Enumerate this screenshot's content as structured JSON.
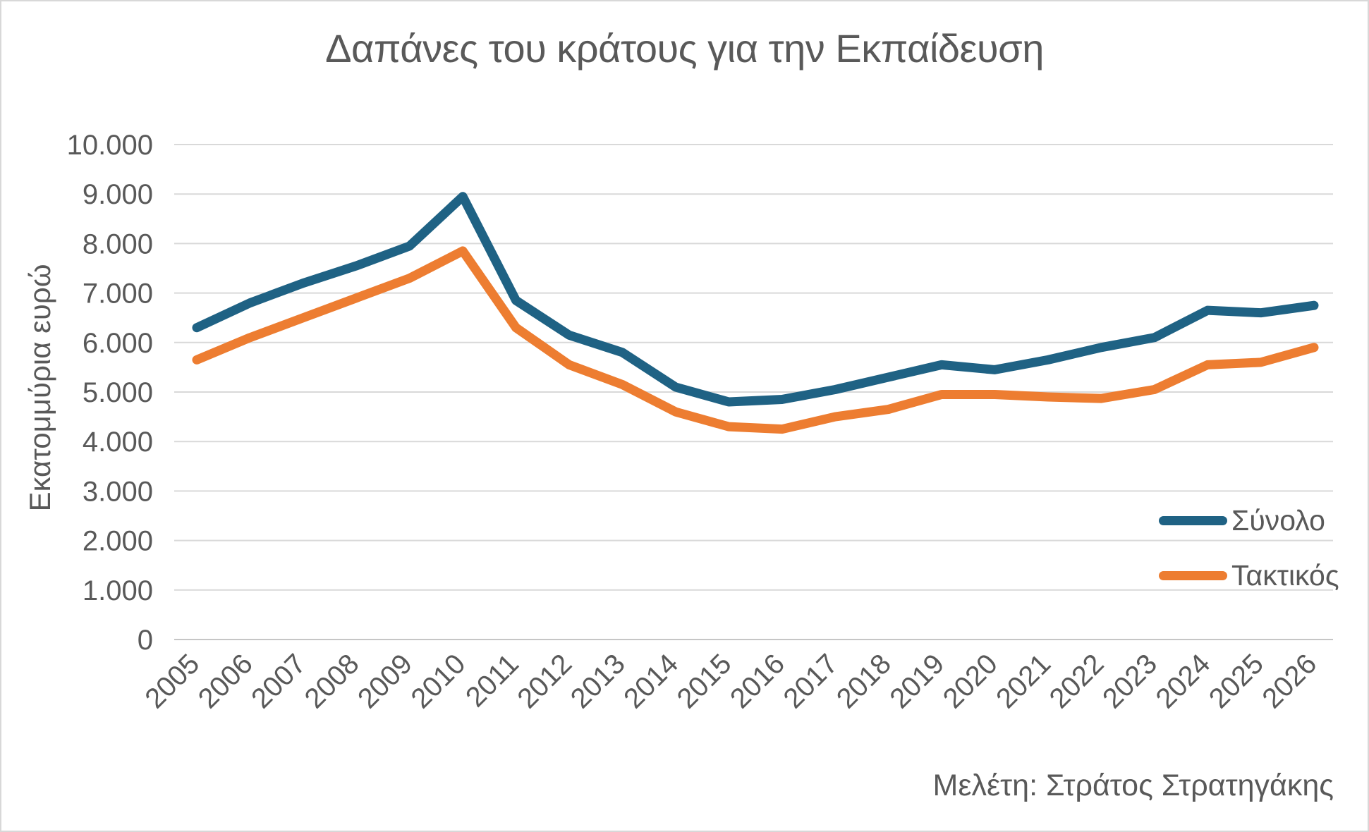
{
  "title": "Δαπάνες του κράτους για την Εκπαίδευση",
  "footer": "Μελέτη: Στράτος Στρατηγάκης",
  "y_axis": {
    "title": "Εκατομμύρια ευρώ"
  },
  "colors": {
    "text": "#595959",
    "gridline": "#d9d9d9",
    "zero_line": "#c6c6c6",
    "series_total": "#1f6284",
    "series_regular": "#ed7d31"
  },
  "chart_data": {
    "type": "line",
    "title": "Δαπάνες του κράτους για την Εκπαίδευση",
    "xlabel": "",
    "ylabel": "Εκατομμύρια ευρώ",
    "ylim": [
      0,
      10000
    ],
    "grid": "horizontal",
    "legend_position": "middle-right",
    "x": [
      2005,
      2006,
      2007,
      2008,
      2009,
      2010,
      2011,
      2012,
      2013,
      2014,
      2015,
      2016,
      2017,
      2018,
      2019,
      2020,
      2021,
      2022,
      2023,
      2024,
      2025,
      2026
    ],
    "series": [
      {
        "name": "Σύνολο",
        "color": "#1f6284",
        "values": [
          6300,
          6800,
          7200,
          7550,
          7950,
          8950,
          6850,
          6150,
          5800,
          5100,
          4800,
          4850,
          5050,
          5300,
          5550,
          5450,
          5650,
          5900,
          6100,
          6650,
          6600,
          6750
        ]
      },
      {
        "name": "Τακτικός",
        "color": "#ed7d31",
        "values": [
          5650,
          6100,
          6500,
          6900,
          7300,
          7850,
          6300,
          5550,
          5150,
          4600,
          4300,
          4250,
          4500,
          4650,
          4950,
          4950,
          4900,
          4870,
          5050,
          5550,
          5600,
          5900
        ]
      }
    ],
    "y_ticks": [
      {
        "value": 0,
        "label": "0"
      },
      {
        "value": 1000,
        "label": "1.000"
      },
      {
        "value": 2000,
        "label": "2.000"
      },
      {
        "value": 3000,
        "label": "3.000"
      },
      {
        "value": 4000,
        "label": "4.000"
      },
      {
        "value": 5000,
        "label": "5.000"
      },
      {
        "value": 6000,
        "label": "6.000"
      },
      {
        "value": 7000,
        "label": "7.000"
      },
      {
        "value": 8000,
        "label": "8.000"
      },
      {
        "value": 9000,
        "label": "9.000"
      },
      {
        "value": 10000,
        "label": "10.000"
      }
    ]
  }
}
